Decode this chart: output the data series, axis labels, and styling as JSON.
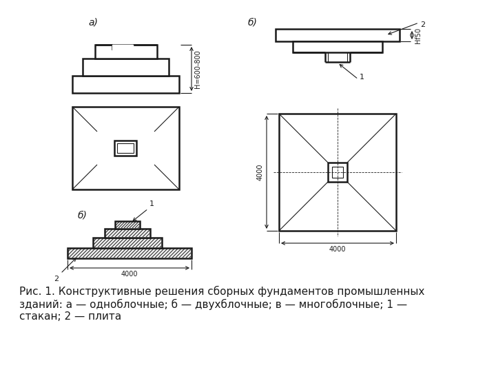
{
  "bg_color": "#ffffff",
  "line_color": "#1a1a1a",
  "caption": "Рис. 1. Конструктивные решения сборных фундаментов промышленных\nзданий: а — одноблочные; б — двухблочные; в — многоблочные; 1 —\nстакан; 2 — плита",
  "label_a": "а)",
  "label_b_left": "б)",
  "label_b_right": "б)",
  "dim_H": "Н=600-800",
  "dim_4000_v": "4000",
  "dim_4000_h": "4000",
  "dim_hf50": "Нf50",
  "caption_fontsize": 11,
  "label_fontsize": 10,
  "dim_fontsize": 8
}
